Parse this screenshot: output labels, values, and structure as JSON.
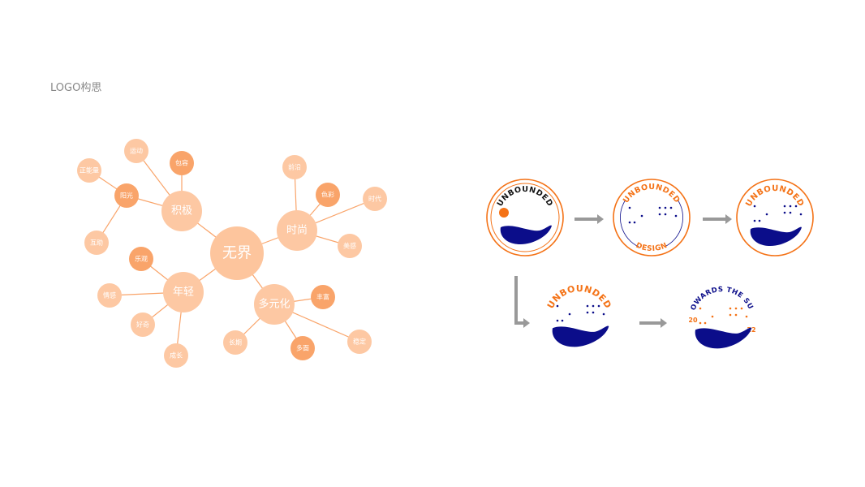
{
  "page_title": "LOGO构思",
  "colors": {
    "node_light": "#fdc8a3",
    "node_dark": "#f9a46a",
    "center": "#fdc59d",
    "line": "#f9a46a",
    "orange": "#f47216",
    "navy": "#0b0d8a",
    "arrow": "#999999"
  },
  "mindmap": {
    "center": "无界",
    "branches": [
      {
        "label": "积极",
        "children": [
          {
            "label": "运动",
            "emphasis": false
          },
          {
            "label": "包容",
            "emphasis": true
          },
          {
            "label": "阳光",
            "emphasis": true,
            "children": [
              {
                "label": "正能量",
                "emphasis": false
              },
              {
                "label": "互助",
                "emphasis": false
              }
            ]
          }
        ]
      },
      {
        "label": "时尚",
        "children": [
          {
            "label": "前沿",
            "emphasis": false
          },
          {
            "label": "色彩",
            "emphasis": true
          },
          {
            "label": "时代",
            "emphasis": false
          },
          {
            "label": "美感",
            "emphasis": false
          }
        ]
      },
      {
        "label": "年轻",
        "children": [
          {
            "label": "乐观",
            "emphasis": true
          },
          {
            "label": "情感",
            "emphasis": false
          },
          {
            "label": "好奇",
            "emphasis": false
          },
          {
            "label": "成长",
            "emphasis": false
          }
        ]
      },
      {
        "label": "多元化",
        "children": [
          {
            "label": "丰富",
            "emphasis": true
          },
          {
            "label": "长期",
            "emphasis": false
          },
          {
            "label": "多面",
            "emphasis": true
          },
          {
            "label": "稳定",
            "emphasis": false
          }
        ]
      }
    ]
  },
  "logos": [
    {
      "arc_text": "UNBOUNDED"
    },
    {
      "arc_text": "UNBOUNDED",
      "bottom_text": "DESIGN"
    },
    {
      "arc_text": "UNBOUNDED"
    },
    {
      "arc_text": "UNBOUNDED"
    },
    {
      "arc_text": "TOWARDS THE SUN",
      "year_left": "20",
      "year_right": "22"
    }
  ]
}
